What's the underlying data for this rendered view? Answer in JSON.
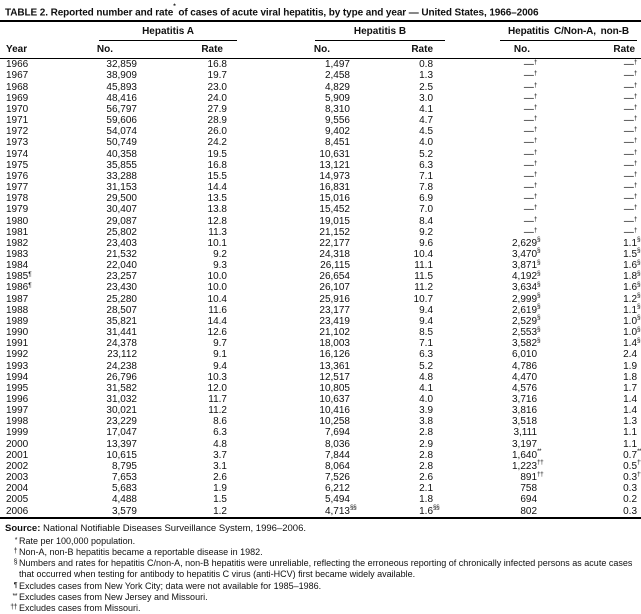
{
  "title": {
    "pre": "TABLE 2. Reported number and rate",
    "sup": "*",
    "post": " of cases of acute viral hepatitis, by type and year — United States, 1966–2006"
  },
  "columns": {
    "year": "Year",
    "no": "No.",
    "rate": "Rate",
    "groups": [
      {
        "label": "Hepatitis A"
      },
      {
        "label": "Hepatitis B"
      },
      {
        "label": "Hepatitis C/Non-A, non-B"
      }
    ]
  },
  "rows": [
    {
      "year": "1966",
      "cells": [
        "32,859",
        "16.8",
        "1,497",
        "0.8",
        "—|†",
        "—|†"
      ]
    },
    {
      "year": "1967",
      "cells": [
        "38,909",
        "19.7",
        "2,458",
        "1.3",
        "—|†",
        "—|†"
      ]
    },
    {
      "year": "1968",
      "cells": [
        "45,893",
        "23.0",
        "4,829",
        "2.5",
        "—|†",
        "—|†"
      ]
    },
    {
      "year": "1969",
      "cells": [
        "48,416",
        "24.0",
        "5,909",
        "3.0",
        "—|†",
        "—|†"
      ]
    },
    {
      "year": "1970",
      "cells": [
        "56,797",
        "27.9",
        "8,310",
        "4.1",
        "—|†",
        "—|†"
      ]
    },
    {
      "year": "1971",
      "cells": [
        "59,606",
        "28.9",
        "9,556",
        "4.7",
        "—|†",
        "—|†"
      ]
    },
    {
      "year": "1972",
      "cells": [
        "54,074",
        "26.0",
        "9,402",
        "4.5",
        "—|†",
        "—|†"
      ]
    },
    {
      "year": "1973",
      "cells": [
        "50,749",
        "24.2",
        "8,451",
        "4.0",
        "—|†",
        "—|†"
      ]
    },
    {
      "year": "1974",
      "cells": [
        "40,358",
        "19.5",
        "10,631",
        "5.2",
        "—|†",
        "—|†"
      ]
    },
    {
      "year": "1975",
      "cells": [
        "35,855",
        "16.8",
        "13,121",
        "6.3",
        "—|†",
        "—|†"
      ]
    },
    {
      "year": "1976",
      "cells": [
        "33,288",
        "15.5",
        "14,973",
        "7.1",
        "—|†",
        "—|†"
      ]
    },
    {
      "year": "1977",
      "cells": [
        "31,153",
        "14.4",
        "16,831",
        "7.8",
        "—|†",
        "—|†"
      ]
    },
    {
      "year": "1978",
      "cells": [
        "29,500",
        "13.5",
        "15,016",
        "6.9",
        "—|†",
        "—|†"
      ]
    },
    {
      "year": "1979",
      "cells": [
        "30,407",
        "13.8",
        "15,452",
        "7.0",
        "—|†",
        "—|†"
      ]
    },
    {
      "year": "1980",
      "cells": [
        "29,087",
        "12.8",
        "19,015",
        "8.4",
        "—|†",
        "—|†"
      ]
    },
    {
      "year": "1981",
      "cells": [
        "25,802",
        "11.3",
        "21,152",
        "9.2",
        "—|†",
        "—|†"
      ]
    },
    {
      "year": "1982",
      "cells": [
        "23,403",
        "10.1",
        "22,177",
        "9.6",
        "2,629|§",
        "1.1|§"
      ]
    },
    {
      "year": "1983",
      "cells": [
        "21,532",
        "9.2",
        "24,318",
        "10.4",
        "3,470|§",
        "1.5|§"
      ]
    },
    {
      "year": "1984",
      "cells": [
        "22,040",
        "9.3",
        "26,115",
        "11.1",
        "3,871|§",
        "1.6|§"
      ]
    },
    {
      "year": "1985|¶",
      "cells": [
        "23,257",
        "10.0",
        "26,654",
        "11.5",
        "4,192|§",
        "1.8|§"
      ]
    },
    {
      "year": "1986|¶",
      "cells": [
        "23,430",
        "10.0",
        "26,107",
        "11.2",
        "3,634|§",
        "1.6|§"
      ]
    },
    {
      "year": "1987",
      "cells": [
        "25,280",
        "10.4",
        "25,916",
        "10.7",
        "2,999|§",
        "1.2|§"
      ]
    },
    {
      "year": "1988",
      "cells": [
        "28,507",
        "11.6",
        "23,177",
        "9.4",
        "2,619|§",
        "1.1|§"
      ]
    },
    {
      "year": "1989",
      "cells": [
        "35,821",
        "14.4",
        "23,419",
        "9.4",
        "2,529|§",
        "1.0|§"
      ]
    },
    {
      "year": "1990",
      "cells": [
        "31,441",
        "12.6",
        "21,102",
        "8.5",
        "2,553|§",
        "1.0|§"
      ]
    },
    {
      "year": "1991",
      "cells": [
        "24,378",
        "9.7",
        "18,003",
        "7.1",
        "3,582|§",
        "1.4|§"
      ]
    },
    {
      "year": "1992",
      "cells": [
        "23,112",
        "9.1",
        "16,126",
        "6.3",
        "6,010",
        "2.4"
      ]
    },
    {
      "year": "1993",
      "cells": [
        "24,238",
        "9.4",
        "13,361",
        "5.2",
        "4,786",
        "1.9"
      ]
    },
    {
      "year": "1994",
      "cells": [
        "26,796",
        "10.3",
        "12,517",
        "4.8",
        "4,470",
        "1.8"
      ]
    },
    {
      "year": "1995",
      "cells": [
        "31,582",
        "12.0",
        "10,805",
        "4.1",
        "4,576",
        "1.7"
      ]
    },
    {
      "year": "1996",
      "cells": [
        "31,032",
        "11.7",
        "10,637",
        "4.0",
        "3,716",
        "1.4"
      ]
    },
    {
      "year": "1997",
      "cells": [
        "30,021",
        "11.2",
        "10,416",
        "3.9",
        "3,816",
        "1.4"
      ]
    },
    {
      "year": "1998",
      "cells": [
        "23,229",
        "8.6",
        "10,258",
        "3.8",
        "3,518",
        "1.3"
      ]
    },
    {
      "year": "1999",
      "cells": [
        "17,047",
        "6.3",
        "7,694",
        "2.8",
        "3,111",
        "1.1"
      ]
    },
    {
      "year": "2000",
      "cells": [
        "13,397",
        "4.8",
        "8,036",
        "2.9",
        "3,197",
        "1.1"
      ]
    },
    {
      "year": "2001",
      "cells": [
        "10,615",
        "3.7",
        "7,844",
        "2.8",
        "1,640|**",
        "0.7|**"
      ]
    },
    {
      "year": "2002",
      "cells": [
        "8,795",
        "3.1",
        "8,064",
        "2.8",
        "1,223|††",
        "0.5|††"
      ]
    },
    {
      "year": "2003",
      "cells": [
        "7,653",
        "2.6",
        "7,526",
        "2.6",
        "891|††",
        "0.3|††"
      ]
    },
    {
      "year": "2004",
      "cells": [
        "5,683",
        "1.9",
        "6,212",
        "2.1",
        "758",
        "0.3"
      ]
    },
    {
      "year": "2005",
      "cells": [
        "4,488",
        "1.5",
        "5,494",
        "1.8",
        "694",
        "0.2"
      ]
    },
    {
      "year": "2006",
      "cells": [
        "3,579",
        "1.2",
        "4,713|§§",
        "1.6|§§",
        "802",
        "0.3"
      ]
    }
  ],
  "source": {
    "label": "Source:",
    "text": " National Notifiable Diseases Surveillance System, 1996–2006."
  },
  "footnotes": [
    {
      "marker": "*",
      "text": "Rate per 100,000 population."
    },
    {
      "marker": "†",
      "text": "Non-A, non-B hepatitis became a reportable disease in 1982."
    },
    {
      "marker": "§",
      "text": "Numbers and rates for hepatitis C/non-A, non-B hepatitis were unreliable, reflecting the erroneous reporting of chronically infected persons as acute cases that occurred when testing for antibody to hepatitis C virus (anti-HCV) first became widely available."
    },
    {
      "marker": "¶",
      "text": "Excludes cases from New York City; data were not available for 1985–1986."
    },
    {
      "marker": "**",
      "text": "Excludes cases from New Jersey and Missouri."
    },
    {
      "marker": "††",
      "text": "Excludes cases from Missouri."
    },
    {
      "marker": "§§",
      "text": "Excludes cases from Arizona."
    }
  ],
  "colors": {
    "background": "#ffffff",
    "text": "#101010",
    "rule": "#000000"
  }
}
